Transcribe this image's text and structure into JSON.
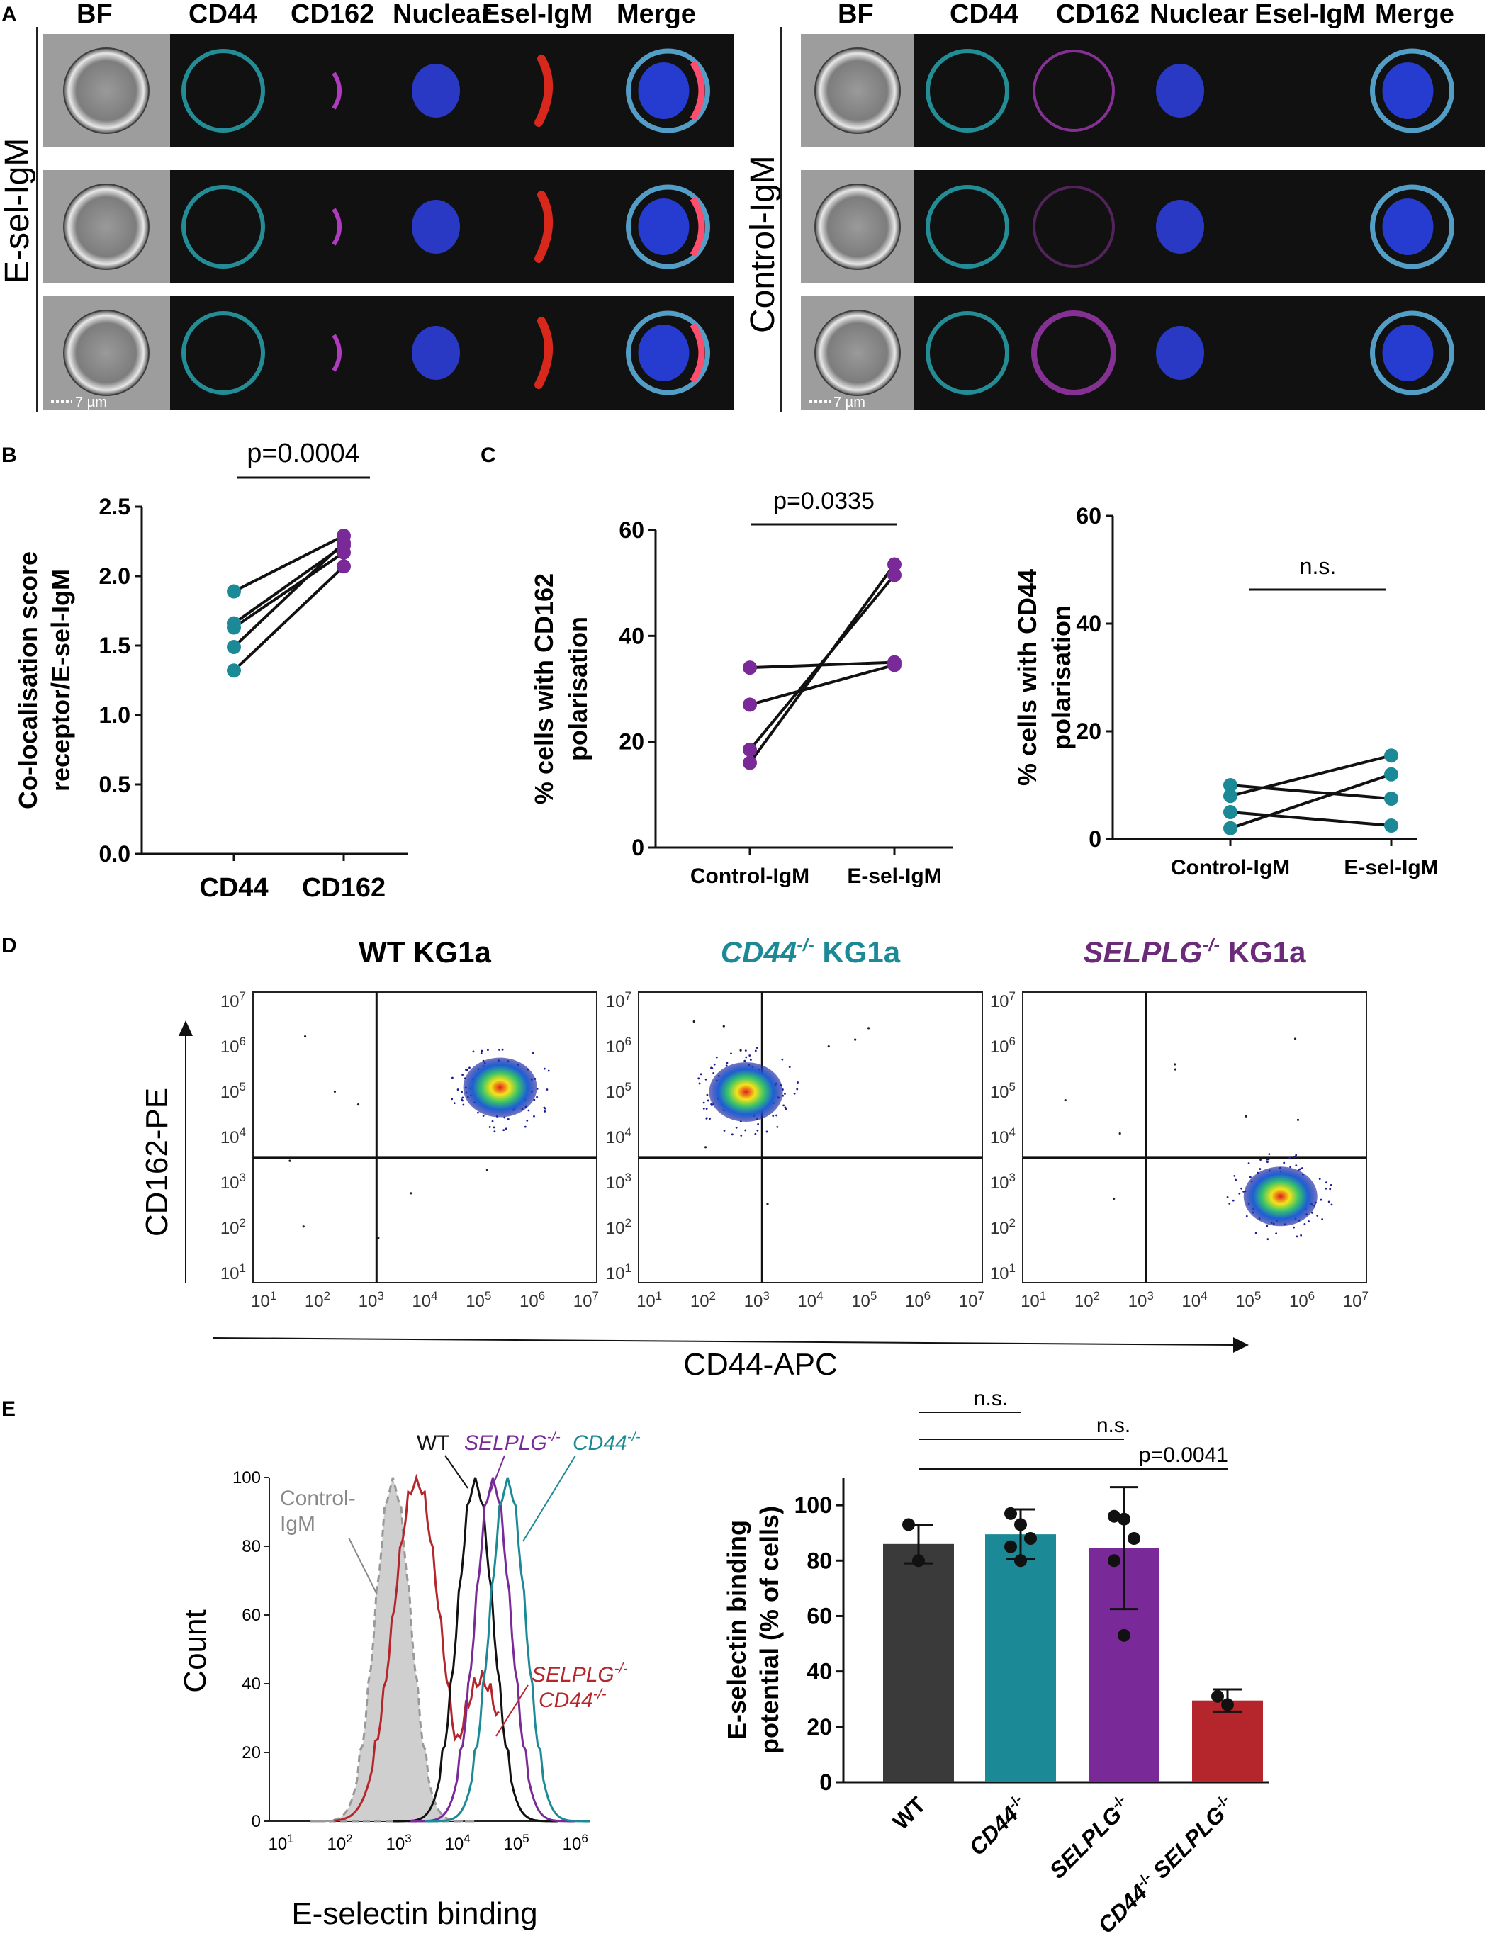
{
  "panels": {
    "A": "A",
    "B": "B",
    "C": "C",
    "D": "D",
    "E": "E"
  },
  "panel_a": {
    "left_group_label": "E-sel-IgM",
    "right_group_label": "Control-IgM",
    "channels": [
      "BF",
      "CD44",
      "CD162",
      "Nuclear",
      "Esel-IgM",
      "Merge"
    ],
    "scale_bar": "7 µm"
  },
  "chart_data": [
    {
      "id": "B",
      "type": "scatter",
      "ylabel": "Co-localisation score receptor/E-sel-IgM",
      "categories": [
        "CD44",
        "CD162"
      ],
      "yticks": [
        "0.0",
        "0.5",
        "1.0",
        "1.5",
        "2.0",
        "2.5"
      ],
      "ylim": [
        0,
        2.5
      ],
      "pvalue": "p=0.0004",
      "pairs": [
        [
          1.89,
          2.29
        ],
        [
          1.66,
          2.22
        ],
        [
          1.63,
          2.17
        ],
        [
          1.49,
          2.24
        ],
        [
          1.32,
          2.07
        ]
      ],
      "colors": [
        "#1b8a96",
        "#7a2a98"
      ]
    },
    {
      "id": "C1",
      "type": "scatter",
      "ylabel": "% cells with CD162 polarisation",
      "categories": [
        "Control-IgM",
        "E-sel-IgM"
      ],
      "yticks": [
        "0",
        "20",
        "40",
        "60"
      ],
      "ylim": [
        0,
        60
      ],
      "pvalue": "p=0.0335",
      "pairs": [
        [
          34,
          35
        ],
        [
          27,
          34.5
        ],
        [
          18.5,
          51.5
        ],
        [
          16,
          53.5
        ]
      ],
      "color": "#7a2a98"
    },
    {
      "id": "C2",
      "type": "scatter",
      "ylabel": "% cells with CD44 polarisation",
      "categories": [
        "Control-IgM",
        "E-sel-IgM"
      ],
      "yticks": [
        "0",
        "20",
        "40",
        "60"
      ],
      "ylim": [
        0,
        60
      ],
      "pvalue": "n.s.",
      "pairs": [
        [
          10,
          7.5
        ],
        [
          8,
          15.5
        ],
        [
          5,
          2.5
        ],
        [
          2,
          12
        ]
      ],
      "color": "#1b8a96"
    },
    {
      "id": "D",
      "type": "scatter",
      "xlabel": "CD44-APC",
      "ylabel": "CD162-PE",
      "tick_exponents": [
        "1",
        "2",
        "3",
        "4",
        "5",
        "6",
        "7"
      ],
      "tick_base": "10",
      "plots": [
        {
          "title": "WT KG1a",
          "title_prefix": "",
          "title_suffix": "WT KG1a",
          "color": "#000000",
          "cluster_log": [
            5.4,
            5.1
          ],
          "quad_x_log": 3.1,
          "quad_y_log": 3.55
        },
        {
          "title": "CD44-/- KG1a",
          "title_prefix": "CD44",
          "title_sup": "-/-",
          "title_suffix": " KG1a",
          "color": "#1b8a96",
          "cluster_log": [
            2.8,
            5.0
          ],
          "quad_x_log": 3.1,
          "quad_y_log": 3.55
        },
        {
          "title": "SELPLG-/- KG1a",
          "title_prefix": "SELPLG",
          "title_sup": "-/-",
          "title_suffix": " KG1a",
          "color": "#6b2a7a",
          "cluster_log": [
            5.6,
            2.7
          ],
          "quad_x_log": 3.1,
          "quad_y_log": 3.55
        }
      ]
    },
    {
      "id": "E1",
      "type": "line",
      "xlabel": "E-selectin binding",
      "ylabel": "Count",
      "yticks": [
        "0",
        "20",
        "40",
        "60",
        "80",
        "100"
      ],
      "tick_exponents": [
        "1",
        "2",
        "3",
        "4",
        "5",
        "6"
      ],
      "tick_base": "10",
      "series": [
        {
          "name": "Control-IgM",
          "label_lines": [
            "Control-",
            "IgM"
          ],
          "color": "#999999",
          "peak_log": 2.9
        },
        {
          "name": "SELPLG-/- CD44-/-",
          "label_lines": [
            "SELPLG",
            "CD44"
          ],
          "color": "#b5262c",
          "peak_log": 3.3
        },
        {
          "name": "WT",
          "color": "#111111",
          "peak_log": 4.3
        },
        {
          "name": "SELPLG-/-",
          "color": "#7a2a98",
          "peak_log": 4.6
        },
        {
          "name": "CD44-/-",
          "color": "#1b8a96",
          "peak_log": 4.85
        }
      ],
      "sup": "-/-"
    },
    {
      "id": "E2",
      "type": "bar",
      "ylabel": "E-selectin binding potential (% of cells)",
      "categories": [
        "WT",
        "CD44-/-",
        "SELPLG-/-",
        "CD44-/- SELPLG-/-"
      ],
      "values": [
        86,
        89.5,
        84.5,
        29.5
      ],
      "errors": [
        7,
        9,
        22,
        4
      ],
      "points": [
        [
          93,
          80
        ],
        [
          97,
          93,
          88,
          85,
          80
        ],
        [
          96,
          95,
          88,
          80,
          53
        ],
        [
          31,
          28
        ]
      ],
      "colors": [
        "#3a3a3a",
        "#1b8a96",
        "#7a2a98",
        "#b5262c"
      ],
      "yticks": [
        "0",
        "20",
        "40",
        "60",
        "80",
        "100"
      ],
      "ylim": [
        0,
        110
      ],
      "comparisons": [
        "n.s.",
        "n.s.",
        "p=0.0041"
      ]
    }
  ]
}
